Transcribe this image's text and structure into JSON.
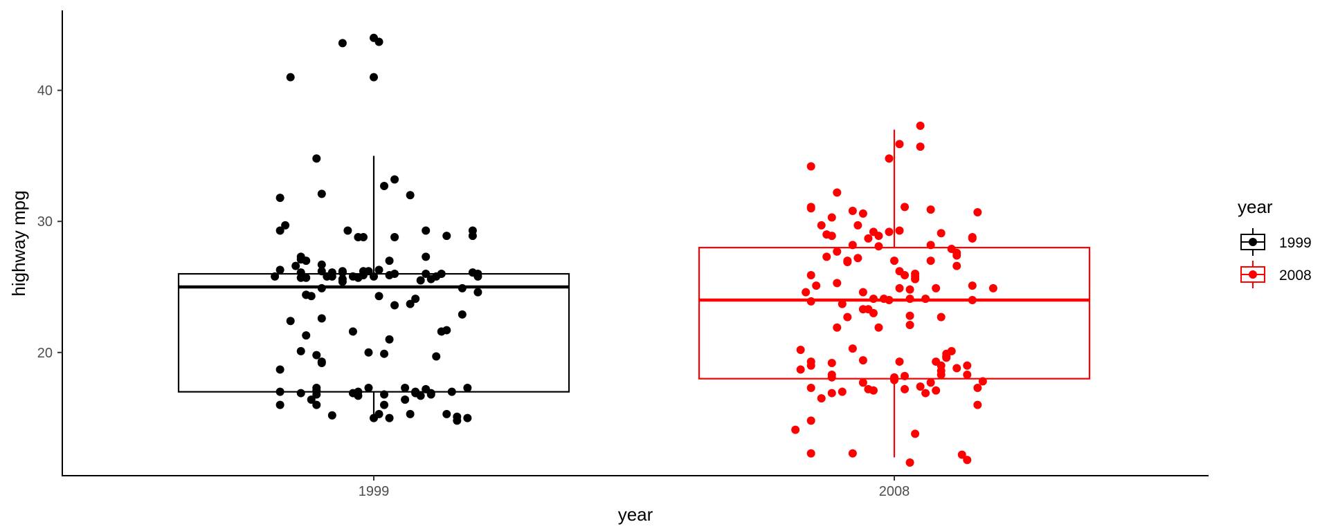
{
  "chart_data": {
    "type": "box",
    "title": "",
    "xlabel": "year",
    "ylabel": "highway mpg",
    "categories": [
      "1999",
      "2008"
    ],
    "y_ticks": [
      20,
      30,
      40
    ],
    "ylim": [
      10.6,
      46.1
    ],
    "grid": false,
    "legend": {
      "title": "year",
      "position": "right",
      "entries": [
        "1999",
        "2008"
      ]
    },
    "colors": {
      "1999": "#000000",
      "2008": "#ff0000"
    },
    "boxes": [
      {
        "category": "1999",
        "min": 15,
        "q1": 17,
        "median": 25,
        "q3": 26,
        "max": 35
      },
      {
        "category": "2008",
        "min": 12,
        "q1": 18,
        "median": 24,
        "q3": 28,
        "max": 37
      }
    ],
    "series": [
      {
        "name": "1999",
        "points": [
          [
            -0.18,
            16.0
          ],
          [
            -0.18,
            17.0
          ],
          [
            -0.19,
            25.8
          ],
          [
            -0.18,
            26.3
          ],
          [
            -0.18,
            29.3
          ],
          [
            -0.17,
            29.7
          ],
          [
            -0.18,
            31.8
          ],
          [
            -0.18,
            18.7
          ],
          [
            -0.16,
            22.4
          ],
          [
            -0.15,
            26.6
          ],
          [
            -0.14,
            27.3
          ],
          [
            -0.13,
            27.0
          ],
          [
            -0.14,
            26.1
          ],
          [
            -0.16,
            41.0
          ],
          [
            -0.13,
            21.3
          ],
          [
            -0.12,
            24.3
          ],
          [
            -0.13,
            24.4
          ],
          [
            -0.13,
            25.7
          ],
          [
            -0.12,
            16.4
          ],
          [
            -0.14,
            20.1
          ],
          [
            -0.14,
            16.9
          ],
          [
            -0.14,
            27.1
          ],
          [
            -0.14,
            25.7
          ],
          [
            -0.11,
            34.8
          ],
          [
            -0.13,
            24.4
          ],
          [
            -0.1,
            32.1
          ],
          [
            -0.1,
            24.9
          ],
          [
            -0.1,
            22.6
          ],
          [
            -0.1,
            26.7
          ],
          [
            -0.1,
            26.2
          ],
          [
            -0.11,
            16.0
          ],
          [
            -0.11,
            16.8
          ],
          [
            -0.11,
            17.3
          ],
          [
            -0.11,
            17.1
          ],
          [
            -0.11,
            19.8
          ],
          [
            -0.1,
            19.2
          ],
          [
            -0.1,
            19.3
          ],
          [
            -0.09,
            25.8
          ],
          [
            -0.08,
            26.1
          ],
          [
            -0.08,
            25.8
          ],
          [
            -0.08,
            15.2
          ],
          [
            -0.06,
            26.1
          ],
          [
            -0.06,
            26.2
          ],
          [
            -0.06,
            25.4
          ],
          [
            -0.04,
            25.8
          ],
          [
            -0.06,
            25.6
          ],
          [
            -0.05,
            29.3
          ],
          [
            -0.04,
            21.6
          ],
          [
            -0.03,
            16.7
          ],
          [
            -0.03,
            17.0
          ],
          [
            -0.02,
            28.8
          ],
          [
            -0.03,
            28.8
          ],
          [
            -0.03,
            25.7
          ],
          [
            -0.02,
            25.9
          ],
          [
            -0.04,
            16.9
          ],
          [
            -0.06,
            43.6
          ],
          [
            -0.02,
            26.2
          ],
          [
            -0.01,
            17.3
          ],
          [
            -0.01,
            20.0
          ],
          [
            -0.01,
            26.2
          ],
          [
            0.0,
            41.0
          ],
          [
            0.0,
            44.0
          ],
          [
            0.01,
            43.7
          ],
          [
            0.0,
            15.0
          ],
          [
            0.0,
            25.8
          ],
          [
            0.01,
            26.3
          ],
          [
            0.01,
            15.3
          ],
          [
            0.01,
            24.3
          ],
          [
            0.02,
            19.9
          ],
          [
            0.02,
            32.7
          ],
          [
            0.02,
            16.8
          ],
          [
            0.02,
            16.0
          ],
          [
            0.03,
            15.0
          ],
          [
            0.03,
            21.0
          ],
          [
            0.03,
            25.9
          ],
          [
            0.03,
            27.0
          ],
          [
            0.04,
            33.2
          ],
          [
            0.04,
            26.0
          ],
          [
            0.04,
            23.6
          ],
          [
            0.04,
            28.8
          ],
          [
            0.06,
            17.3
          ],
          [
            0.06,
            16.4
          ],
          [
            0.07,
            32.0
          ],
          [
            0.07,
            15.3
          ],
          [
            0.07,
            23.7
          ],
          [
            0.08,
            24.1
          ],
          [
            0.08,
            17.0
          ],
          [
            0.08,
            16.9
          ],
          [
            0.09,
            16.7
          ],
          [
            0.09,
            25.5
          ],
          [
            0.1,
            27.3
          ],
          [
            0.1,
            29.3
          ],
          [
            0.1,
            17.2
          ],
          [
            0.1,
            26.0
          ],
          [
            0.11,
            16.9
          ],
          [
            0.11,
            25.6
          ],
          [
            0.11,
            16.8
          ],
          [
            0.12,
            19.7
          ],
          [
            0.12,
            25.8
          ],
          [
            0.13,
            21.6
          ],
          [
            0.13,
            26.0
          ],
          [
            0.14,
            28.9
          ],
          [
            0.14,
            21.7
          ],
          [
            0.14,
            15.3
          ],
          [
            0.15,
            17.0
          ],
          [
            0.16,
            14.8
          ],
          [
            0.16,
            15.1
          ],
          [
            0.17,
            22.9
          ],
          [
            0.17,
            24.9
          ],
          [
            0.18,
            15.0
          ],
          [
            0.18,
            17.3
          ],
          [
            0.19,
            26.1
          ],
          [
            0.19,
            29.3
          ],
          [
            0.19,
            28.9
          ],
          [
            0.2,
            25.8
          ],
          [
            0.2,
            24.6
          ],
          [
            0.2,
            26.0
          ]
        ]
      },
      {
        "name": "2008",
        "points": [
          [
            -0.19,
            14.1
          ],
          [
            -0.18,
            20.2
          ],
          [
            -0.18,
            18.7
          ],
          [
            -0.16,
            31.0
          ],
          [
            -0.16,
            31.1
          ],
          [
            -0.16,
            34.2
          ],
          [
            -0.16,
            17.3
          ],
          [
            -0.16,
            25.9
          ],
          [
            -0.16,
            23.9
          ],
          [
            -0.17,
            24.6
          ],
          [
            -0.16,
            12.3
          ],
          [
            -0.16,
            14.8
          ],
          [
            -0.16,
            19.0
          ],
          [
            -0.16,
            19.3
          ],
          [
            -0.15,
            25.1
          ],
          [
            -0.14,
            16.5
          ],
          [
            -0.14,
            29.7
          ],
          [
            -0.13,
            27.3
          ],
          [
            -0.13,
            29.0
          ],
          [
            -0.12,
            18.1
          ],
          [
            -0.12,
            18.3
          ],
          [
            -0.12,
            19.2
          ],
          [
            -0.12,
            30.3
          ],
          [
            -0.12,
            16.9
          ],
          [
            -0.12,
            28.9
          ],
          [
            -0.11,
            32.2
          ],
          [
            -0.11,
            21.9
          ],
          [
            -0.11,
            25.3
          ],
          [
            -0.11,
            27.7
          ],
          [
            -0.1,
            23.7
          ],
          [
            -0.1,
            17.0
          ],
          [
            -0.09,
            22.7
          ],
          [
            -0.09,
            27.0
          ],
          [
            -0.09,
            26.9
          ],
          [
            -0.08,
            20.3
          ],
          [
            -0.08,
            30.8
          ],
          [
            -0.08,
            28.2
          ],
          [
            -0.08,
            12.3
          ],
          [
            -0.07,
            29.7
          ],
          [
            -0.07,
            27.2
          ],
          [
            -0.06,
            23.3
          ],
          [
            -0.06,
            19.4
          ],
          [
            -0.06,
            17.7
          ],
          [
            -0.06,
            24.6
          ],
          [
            -0.06,
            30.6
          ],
          [
            -0.05,
            28.7
          ],
          [
            -0.05,
            23.3
          ],
          [
            -0.05,
            17.2
          ],
          [
            -0.04,
            23.0
          ],
          [
            -0.04,
            29.2
          ],
          [
            -0.04,
            17.1
          ],
          [
            -0.04,
            24.1
          ],
          [
            -0.03,
            28.9
          ],
          [
            -0.03,
            21.9
          ],
          [
            -0.03,
            28.1
          ],
          [
            -0.02,
            24.1
          ],
          [
            -0.01,
            34.8
          ],
          [
            -0.01,
            29.2
          ],
          [
            -0.01,
            24.0
          ],
          [
            0.0,
            18.1
          ],
          [
            0.0,
            27.0
          ],
          [
            0.0,
            17.9
          ],
          [
            0.01,
            24.9
          ],
          [
            0.01,
            19.3
          ],
          [
            0.01,
            26.2
          ],
          [
            0.01,
            35.9
          ],
          [
            0.01,
            29.3
          ],
          [
            0.02,
            31.1
          ],
          [
            0.02,
            18.2
          ],
          [
            0.02,
            25.9
          ],
          [
            0.02,
            17.2
          ],
          [
            0.03,
            24.1
          ],
          [
            0.03,
            11.6
          ],
          [
            0.03,
            24.8
          ],
          [
            0.03,
            22.8
          ],
          [
            0.03,
            22.1
          ],
          [
            0.04,
            25.8
          ],
          [
            0.04,
            25.6
          ],
          [
            0.04,
            26.0
          ],
          [
            0.04,
            13.8
          ],
          [
            0.05,
            37.3
          ],
          [
            0.05,
            35.7
          ],
          [
            0.05,
            17.4
          ],
          [
            0.06,
            24.1
          ],
          [
            0.06,
            16.9
          ],
          [
            0.07,
            30.9
          ],
          [
            0.07,
            27.0
          ],
          [
            0.07,
            28.2
          ],
          [
            0.07,
            17.7
          ],
          [
            0.08,
            19.3
          ],
          [
            0.08,
            24.9
          ],
          [
            0.08,
            17.1
          ],
          [
            0.09,
            19.0
          ],
          [
            0.09,
            18.3
          ],
          [
            0.09,
            18.6
          ],
          [
            0.09,
            22.7
          ],
          [
            0.09,
            29.1
          ],
          [
            0.1,
            19.6
          ],
          [
            0.1,
            19.9
          ],
          [
            0.1,
            19.7
          ],
          [
            0.11,
            20.1
          ],
          [
            0.11,
            27.9
          ],
          [
            0.12,
            18.8
          ],
          [
            0.12,
            27.6
          ],
          [
            0.12,
            27.4
          ],
          [
            0.12,
            26.6
          ],
          [
            0.13,
            12.2
          ],
          [
            0.14,
            11.8
          ],
          [
            0.14,
            19.0
          ],
          [
            0.14,
            18.3
          ],
          [
            0.15,
            25.1
          ],
          [
            0.15,
            28.8
          ],
          [
            0.15,
            28.7
          ],
          [
            0.15,
            24.0
          ],
          [
            0.16,
            17.3
          ],
          [
            0.16,
            16.0
          ],
          [
            0.16,
            30.7
          ],
          [
            0.17,
            17.8
          ],
          [
            0.19,
            24.9
          ]
        ]
      }
    ]
  }
}
